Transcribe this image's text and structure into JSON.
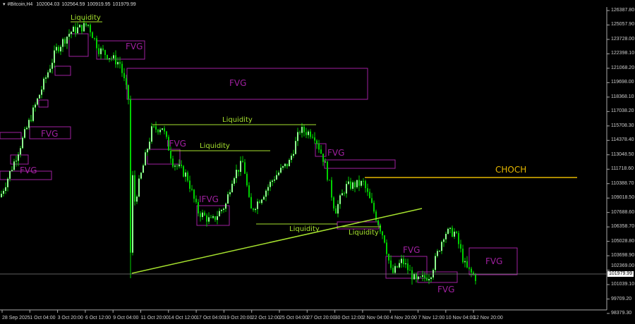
{
  "header": {
    "symbol": "#Bitcoin,H4",
    "open": "102004.03",
    "high": "102564.59",
    "low": "100919.95",
    "close": "101979.99"
  },
  "colors": {
    "background": "#000000",
    "candle": "#00d000",
    "candle_bull_body": "#90ff90",
    "fvg_box": "#a020a0",
    "liquidity": "#a6e22e",
    "choch": "#e6b800",
    "trendline": "#a6e22e",
    "price_line": "#808080"
  },
  "chart_data": {
    "type": "candlestick",
    "timeframe": "H4",
    "current_price": "101979.99",
    "y_ticks": [
      "126387.80",
      "125057.90",
      "123728.00",
      "122398.10",
      "121068.20",
      "119698.00",
      "118368.10",
      "117038.20",
      "115708.30",
      "114378.40",
      "113048.50",
      "111718.60",
      "110388.70",
      "109018.50",
      "107688.60",
      "106358.70",
      "105028.80",
      "103698.90",
      "102369.00",
      "101039.10",
      "99709.20",
      "98379.30"
    ],
    "ylim": [
      98379.3,
      126387.8
    ],
    "x_ticks": [
      "28 Sep 2025",
      "1 Oct 04:00",
      "3 Oct 20:00",
      "6 Oct 12:00",
      "9 Oct 04:00",
      "11 Oct 20:00",
      "14 Oct 12:00",
      "17 Oct 04:00",
      "19 Oct 20:00",
      "22 Oct 12:00",
      "25 Oct 04:00",
      "27 Oct 20:00",
      "30 Oct 12:00",
      "2 Nov 04:00",
      "4 Nov 20:00",
      "7 Nov 12:00",
      "10 Nov 04:00",
      "12 Nov 20:00"
    ],
    "approx_close_path": [
      109130,
      112380,
      117600,
      122800,
      124430,
      125080,
      122800,
      121500,
      118250,
      108500,
      115320,
      115650,
      112380,
      111080,
      107830,
      106850,
      108480,
      111080,
      112380,
      107830,
      109130,
      111080,
      112380,
      115320,
      114990,
      112380,
      107830,
      110110,
      110430,
      107830,
      105220,
      101960,
      103260,
      101310,
      101960,
      105870,
      105870,
      102610,
      101640
    ],
    "annotations": {
      "fvg": [
        "FVG",
        "FVG",
        "FVG",
        "FVG",
        "FVG",
        "FVG",
        "FVG",
        "FVG"
      ],
      "ifvg": [
        "IFVG",
        "IFVG"
      ],
      "liquidity": [
        "Liquidity",
        "Liquidity",
        "Liquidity",
        "Liquidity",
        "Liquidity"
      ],
      "choch": "CHOCH"
    }
  }
}
